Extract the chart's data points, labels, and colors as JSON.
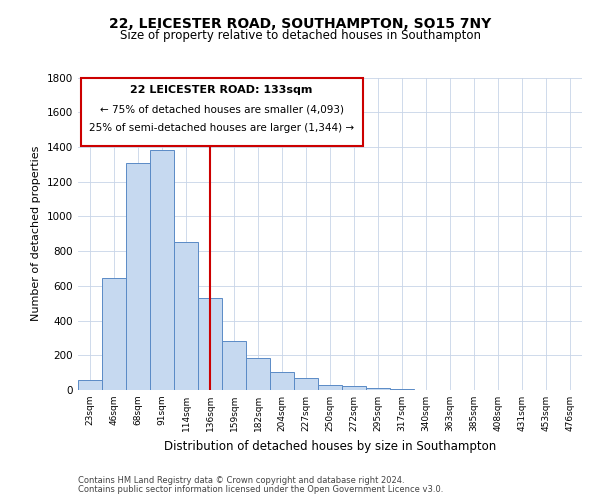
{
  "title1": "22, LEICESTER ROAD, SOUTHAMPTON, SO15 7NY",
  "title2": "Size of property relative to detached houses in Southampton",
  "xlabel": "Distribution of detached houses by size in Southampton",
  "ylabel": "Number of detached properties",
  "bar_labels": [
    "23sqm",
    "46sqm",
    "68sqm",
    "91sqm",
    "114sqm",
    "136sqm",
    "159sqm",
    "182sqm",
    "204sqm",
    "227sqm",
    "250sqm",
    "272sqm",
    "295sqm",
    "317sqm",
    "340sqm",
    "363sqm",
    "385sqm",
    "408sqm",
    "431sqm",
    "453sqm",
    "476sqm"
  ],
  "bar_values": [
    55,
    645,
    1310,
    1380,
    855,
    530,
    280,
    185,
    105,
    68,
    30,
    22,
    10,
    5,
    0,
    0,
    0,
    0,
    0,
    0,
    0
  ],
  "bar_color": "#c6d9f0",
  "bar_edge_color": "#5a8ac6",
  "vline_x": 5,
  "vline_color": "#cc0000",
  "annotation_box_title": "22 LEICESTER ROAD: 133sqm",
  "annotation_line1": "← 75% of detached houses are smaller (4,093)",
  "annotation_line2": "25% of semi-detached houses are larger (1,344) →",
  "annotation_box_color": "#cc0000",
  "ylim": [
    0,
    1800
  ],
  "yticks": [
    0,
    200,
    400,
    600,
    800,
    1000,
    1200,
    1400,
    1600,
    1800
  ],
  "footnote1": "Contains HM Land Registry data © Crown copyright and database right 2024.",
  "footnote2": "Contains public sector information licensed under the Open Government Licence v3.0.",
  "grid_color": "#c8d4e8",
  "fig_width": 6.0,
  "fig_height": 5.0,
  "dpi": 100
}
